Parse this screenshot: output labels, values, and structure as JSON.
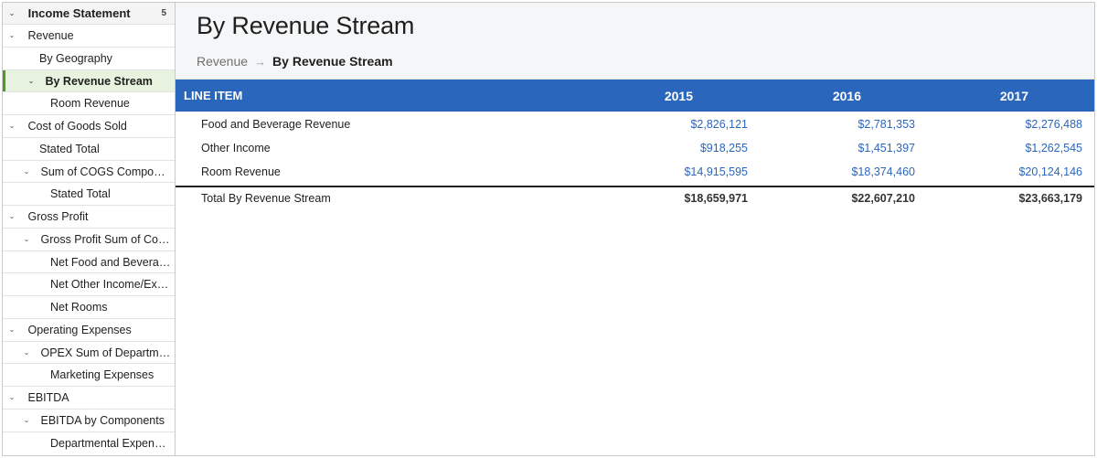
{
  "sidebar": {
    "header": {
      "label": "Income Statement",
      "count": "5"
    },
    "items": [
      {
        "label": "Revenue",
        "chevron": "⌄"
      },
      {
        "label": "By Geography",
        "chevron": ""
      },
      {
        "label": "By Revenue Stream",
        "chevron": "⌄"
      },
      {
        "label": "Room Revenue",
        "chevron": ""
      },
      {
        "label": "Cost of Goods Sold",
        "chevron": "⌄"
      },
      {
        "label": "Stated Total",
        "chevron": ""
      },
      {
        "label": "Sum of COGS Compone…",
        "chevron": "⌄"
      },
      {
        "label": "Stated Total",
        "chevron": ""
      },
      {
        "label": "Gross Profit",
        "chevron": "⌄"
      },
      {
        "label": "Gross Profit Sum of Com…",
        "chevron": "⌄"
      },
      {
        "label": "Net Food and Beverage",
        "chevron": ""
      },
      {
        "label": "Net Other Income/Exp…",
        "chevron": ""
      },
      {
        "label": "Net Rooms",
        "chevron": ""
      },
      {
        "label": "Operating Expenses",
        "chevron": "⌄"
      },
      {
        "label": "OPEX Sum of Departme…",
        "chevron": "⌄"
      },
      {
        "label": "Marketing Expenses",
        "chevron": ""
      },
      {
        "label": "EBITDA",
        "chevron": "⌄"
      },
      {
        "label": "EBITDA by Components",
        "chevron": "⌄"
      },
      {
        "label": "Departmental Expenses",
        "chevron": ""
      }
    ]
  },
  "page": {
    "title": "By Revenue Stream",
    "breadcrumb": {
      "parent": "Revenue",
      "separator": "→",
      "current": "By Revenue Stream"
    }
  },
  "table": {
    "headers": {
      "item": "LINE ITEM",
      "y1": "2015",
      "y2": "2016",
      "y3": "2017"
    },
    "rows": [
      {
        "item": "Food and Beverage Revenue",
        "y1": "$2,826,121",
        "y2": "$2,781,353",
        "y3": "$2,276,488"
      },
      {
        "item": "Other Income",
        "y1": "$918,255",
        "y2": "$1,451,397",
        "y3": "$1,262,545"
      },
      {
        "item": "Room Revenue",
        "y1": "$14,915,595",
        "y2": "$18,374,460",
        "y3": "$20,124,146"
      }
    ],
    "total": {
      "item": "Total By Revenue Stream",
      "y1": "$18,659,971",
      "y2": "$22,607,210",
      "y3": "$23,663,179"
    }
  },
  "colors": {
    "accent": "#2b66bd",
    "selected_bg": "#e7f3df",
    "selected_bar": "#4c9a2a"
  }
}
